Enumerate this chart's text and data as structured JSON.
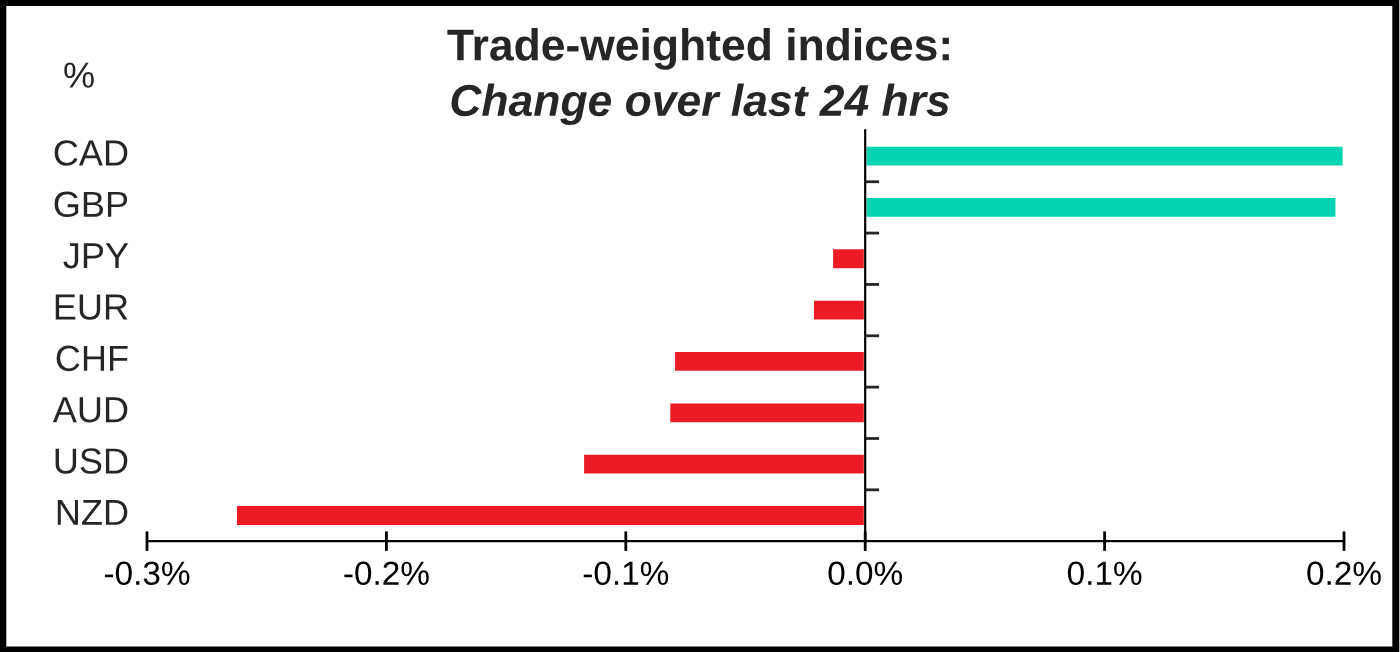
{
  "chart_data": {
    "type": "bar",
    "orientation": "horizontal",
    "title": "Trade-weighted indices:",
    "subtitle": "Change over last 24 hrs",
    "annotations": [
      "%"
    ],
    "categories": [
      "CAD",
      "GBP",
      "JPY",
      "EUR",
      "CHF",
      "AUD",
      "USD",
      "NZD"
    ],
    "values": [
      0.2,
      0.197,
      -0.014,
      -0.022,
      -0.08,
      -0.082,
      -0.118,
      -0.263
    ],
    "colors": [
      "#00d4b4",
      "#00d4b4",
      "#ed1c24",
      "#ed1c24",
      "#ed1c24",
      "#ed1c24",
      "#ed1c24",
      "#ed1c24"
    ],
    "xlim": [
      -0.3,
      0.2
    ],
    "xticks": [
      {
        "value": -0.3,
        "label": "-0.3%"
      },
      {
        "value": -0.2,
        "label": "-0.2%"
      },
      {
        "value": -0.1,
        "label": "-0.1%"
      },
      {
        "value": 0,
        "label": "0.0%"
      },
      {
        "value": 0.1,
        "label": "0.1%"
      },
      {
        "value": 0.2,
        "label": "0.2%"
      }
    ],
    "legend": false
  }
}
